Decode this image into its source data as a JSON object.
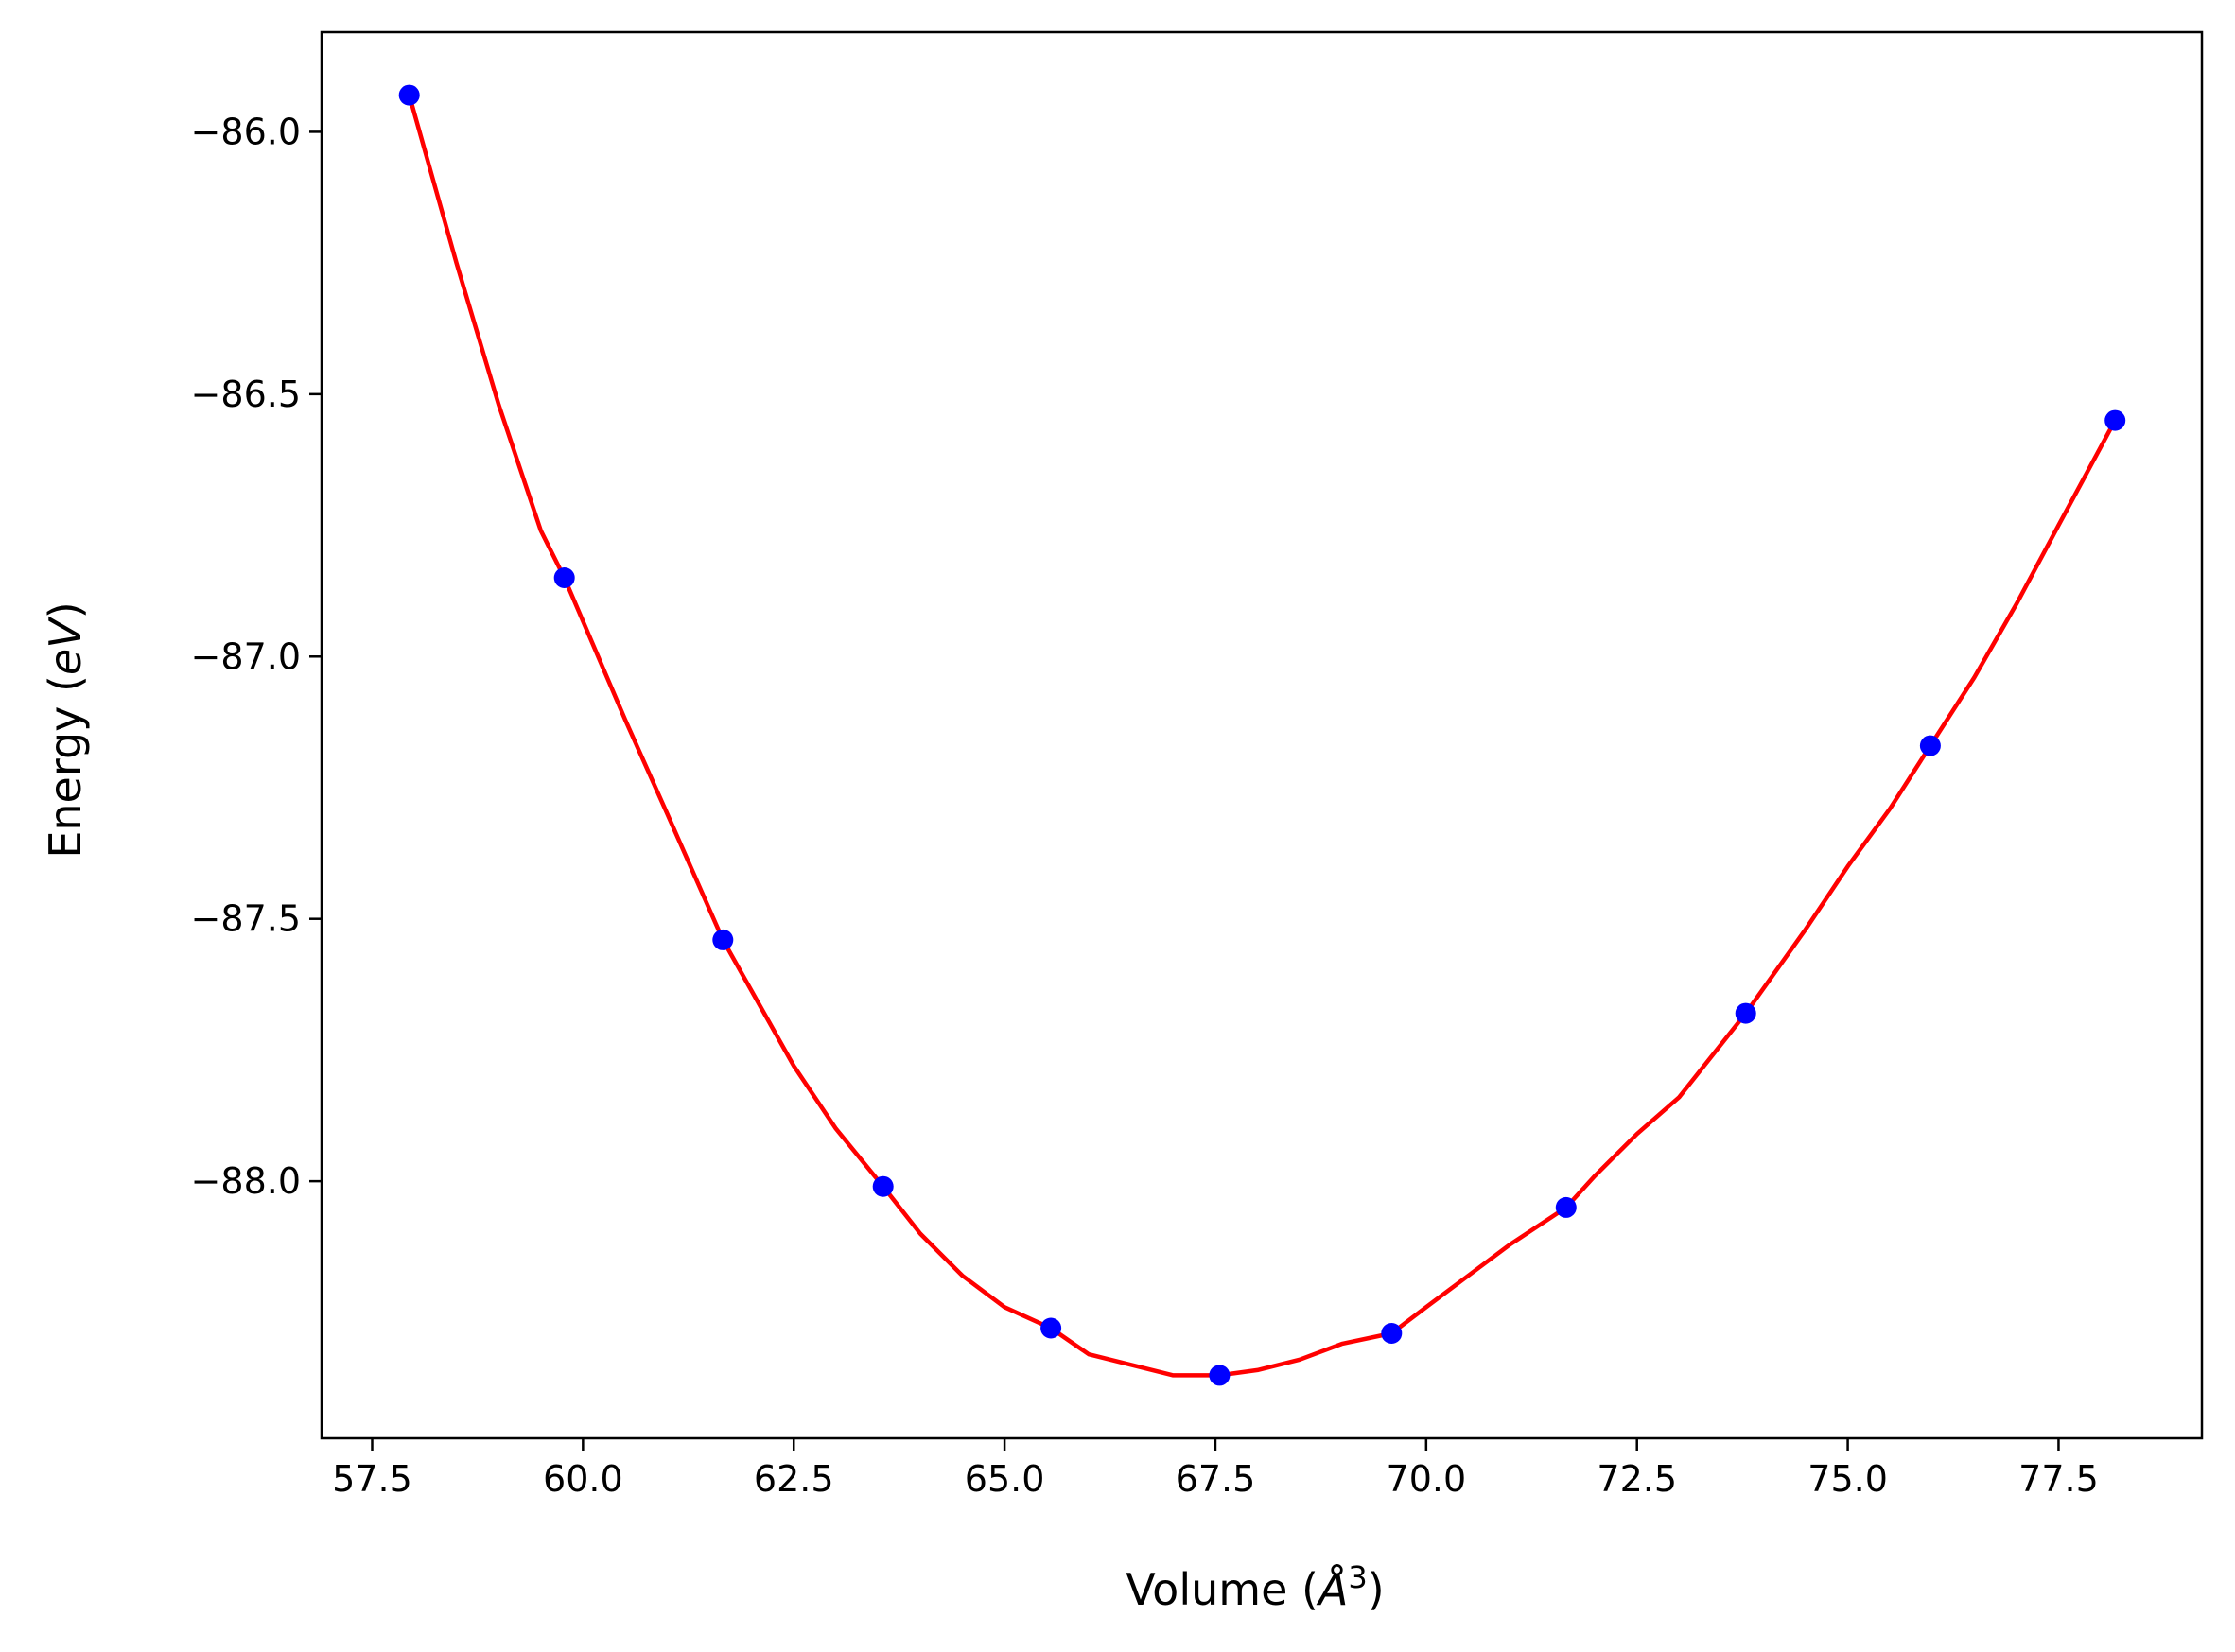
{
  "chart_data": {
    "type": "scatter",
    "title": "",
    "xlabel": {
      "prefix": "Volume (",
      "unit": "Å",
      "superscript": "3",
      "suffix": ")"
    },
    "ylabel": {
      "prefix": "Energy (",
      "unit": "eV",
      "suffix": ")"
    },
    "xlim": [
      56.9,
      79.2
    ],
    "ylim": [
      -88.49,
      -85.81
    ],
    "xticks": [
      57.5,
      60.0,
      62.5,
      65.0,
      67.5,
      70.0,
      72.5,
      75.0,
      77.5
    ],
    "xtick_labels": [
      "57.5",
      "60.0",
      "62.5",
      "65.0",
      "67.5",
      "70.0",
      "72.5",
      "75.0",
      "77.5"
    ],
    "yticks": [
      -86.0,
      -86.5,
      -87.0,
      -87.5,
      -88.0
    ],
    "ytick_labels": [
      "−86.0",
      "−86.5",
      "−87.0",
      "−87.5",
      "−88.0"
    ],
    "grid": false,
    "legend": "none",
    "series": [
      {
        "kind": "scatter",
        "color": "#0000ff",
        "x": [
          57.94,
          59.78,
          61.66,
          63.56,
          65.55,
          67.55,
          69.59,
          71.66,
          73.79,
          75.98,
          78.17
        ],
        "y": [
          -85.93,
          -86.85,
          -87.54,
          -88.01,
          -88.28,
          -88.37,
          -88.29,
          -88.05,
          -87.68,
          -87.17,
          -86.55
        ]
      },
      {
        "kind": "line",
        "color": "#ff0000",
        "x": [
          57.94,
          58.5,
          59.0,
          59.5,
          59.78,
          60.5,
          61.0,
          61.66,
          62.5,
          63.0,
          63.56,
          64.0,
          64.5,
          65.0,
          65.55,
          66.0,
          66.5,
          67.0,
          67.55,
          68.0,
          68.5,
          69.0,
          69.59,
          70.0,
          70.5,
          71.0,
          71.66,
          72.0,
          72.5,
          73.0,
          73.79,
          74.5,
          75.0,
          75.5,
          75.98,
          76.5,
          77.0,
          77.5,
          78.17
        ],
        "y": [
          -85.93,
          -86.25,
          -86.52,
          -86.76,
          -86.85,
          -87.12,
          -87.3,
          -87.54,
          -87.78,
          -87.9,
          -88.01,
          -88.1,
          -88.18,
          -88.24,
          -88.28,
          -88.33,
          -88.35,
          -88.37,
          -88.37,
          -88.36,
          -88.34,
          -88.31,
          -88.29,
          -88.24,
          -88.18,
          -88.12,
          -88.05,
          -87.99,
          -87.91,
          -87.84,
          -87.68,
          -87.52,
          -87.4,
          -87.29,
          -87.17,
          -87.04,
          -86.9,
          -86.75,
          -86.55
        ]
      }
    ]
  }
}
